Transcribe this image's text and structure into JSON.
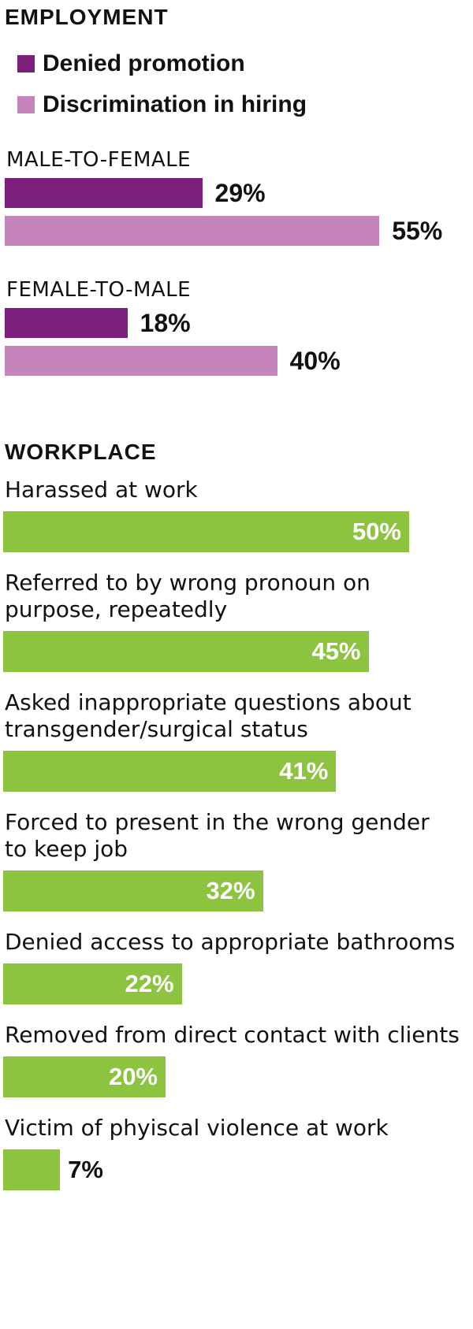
{
  "employment": {
    "title": "EMPLOYMENT",
    "legend": [
      {
        "label": "Denied promotion",
        "color": "#7b1f7d"
      },
      {
        "label": "Discrimination in hiring",
        "color": "#c584bb"
      }
    ]
  },
  "workplace": {
    "title": "WORKPLACE"
  },
  "chart_data": [
    {
      "type": "bar",
      "orientation": "horizontal",
      "title": "EMPLOYMENT",
      "categories": [
        "MALE-TO-FEMALE",
        "FEMALE-TO-MALE"
      ],
      "series": [
        {
          "name": "Denied promotion",
          "values": [
            29,
            18
          ],
          "labels": [
            "29%",
            "18%"
          ],
          "color": "#7b1f7d"
        },
        {
          "name": "Discrimination in hiring",
          "values": [
            55,
            40
          ],
          "labels": [
            "55%",
            "40%"
          ],
          "color": "#c584bb"
        }
      ],
      "xlim": [
        0,
        100
      ],
      "grid": false,
      "legend": "top-left"
    },
    {
      "type": "bar",
      "orientation": "horizontal",
      "title": "WORKPLACE",
      "categories": [
        "Harassed at work",
        "Referred to by wrong pronoun on purpose, repeatedly",
        "Asked inappropriate questions about transgender/surgical status",
        "Forced to present in the wrong gender to keep job",
        "Denied access to appropriate bathrooms",
        "Removed from direct contact with clients",
        "Victim of phyiscal violence at work"
      ],
      "category_lines": [
        [
          "Harassed at work"
        ],
        [
          "Referred to by wrong pronoun on",
          "purpose, repeatedly"
        ],
        [
          "Asked inappropriate questions about",
          "transgender/surgical status"
        ],
        [
          "Forced to present in the wrong gender",
          "to keep job"
        ],
        [
          "Denied access to appropriate bathrooms"
        ],
        [
          "Removed from direct contact with clients"
        ],
        [
          "Victim of phyiscal violence at work"
        ]
      ],
      "values": [
        50,
        45,
        41,
        32,
        22,
        20,
        7
      ],
      "labels": [
        "50%",
        "45%",
        "41%",
        "32%",
        "22%",
        "20%",
        "7%"
      ],
      "color": "#8cc43f",
      "xlim": [
        0,
        100
      ],
      "grid": false
    }
  ]
}
